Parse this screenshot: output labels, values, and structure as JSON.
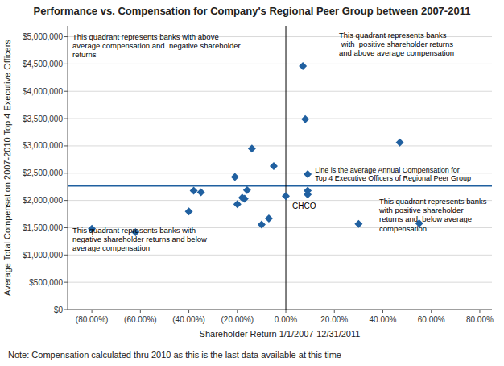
{
  "chart_data": {
    "type": "scatter",
    "title": "Performance vs. Compensation for Company's Regional Peer Group between 2007-2011",
    "x_label": "Shareholder Return 1/1/2007-12/31/2011",
    "y_label": "Average Total Compensation 2007-2010 Top 4 Executive Officers",
    "note": "Note: Compensation calculated thru 2010 as this is the last data available at this time",
    "x": [
      -0.8,
      -0.62,
      -0.4,
      -0.38,
      -0.35,
      -0.21,
      -0.2,
      -0.18,
      -0.17,
      -0.16,
      -0.14,
      -0.1,
      -0.07,
      -0.05,
      0.0,
      0.07,
      0.08,
      0.09,
      0.09,
      0.09,
      0.3,
      0.47,
      0.55
    ],
    "values": [
      1480000,
      1420000,
      1800000,
      2180000,
      2150000,
      2430000,
      1930000,
      2050000,
      2030000,
      2190000,
      2950000,
      1560000,
      1670000,
      2630000,
      2080000,
      4460000,
      3490000,
      2480000,
      2180000,
      2110000,
      1570000,
      3060000,
      1580000
    ],
    "color": "#2060A0",
    "marker": "diamond",
    "xlim": [
      -0.9,
      0.85
    ],
    "ylim": [
      0,
      5200000
    ],
    "xticks": [
      {
        "value": -0.8,
        "label": "(80.00%)"
      },
      {
        "value": -0.6,
        "label": "(60.00%)"
      },
      {
        "value": -0.4,
        "label": "(40.00%)"
      },
      {
        "value": -0.2,
        "label": "(20.00%)"
      },
      {
        "value": 0.0,
        "label": "0.00%"
      },
      {
        "value": 0.2,
        "label": "20.00%"
      },
      {
        "value": 0.4,
        "label": "40.00%"
      },
      {
        "value": 0.6,
        "label": "60.00%"
      },
      {
        "value": 0.8,
        "label": "80.00%"
      }
    ],
    "yticks": [
      {
        "value": 0,
        "label": "$0"
      },
      {
        "value": 500000,
        "label": "$500,000"
      },
      {
        "value": 1000000,
        "label": "$1,000,000"
      },
      {
        "value": 1500000,
        "label": "$1,500,000"
      },
      {
        "value": 2000000,
        "label": "$2,000,000"
      },
      {
        "value": 2500000,
        "label": "$2,500,000"
      },
      {
        "value": 3000000,
        "label": "$3,000,000"
      },
      {
        "value": 3500000,
        "label": "$3,500,000"
      },
      {
        "value": 4000000,
        "label": "$4,000,000"
      },
      {
        "value": 4500000,
        "label": "$4,500,000"
      },
      {
        "value": 5000000,
        "label": "$5,000,000"
      }
    ],
    "grid": "y",
    "reference_lines": [
      {
        "axis": "y",
        "value": 2270000,
        "color": "#2060A0",
        "label": "Line is the average Annual Compensation for\nTop 4 Executive Officers of Regional Peer Group"
      },
      {
        "axis": "x",
        "value": 0.0,
        "color": "#000000"
      }
    ],
    "annotations": [
      {
        "text": "CHCO",
        "x": 0.0,
        "y": 2080000
      }
    ],
    "quadrant_texts": {
      "upper_left": "This quadrant represents banks with above\naverage compensation and  negative shareholder\nreturns",
      "upper_right": "This quadrant represents banks\n with  positive shareholder returns\nand above average compensation",
      "lower_left": "This quadrant represents banks with\nnegative shareholder returns and below\naverage compensation",
      "lower_right": "This quadrant represents banks\nwith positive shareholder\nreturns and  below average\ncompensation"
    }
  }
}
